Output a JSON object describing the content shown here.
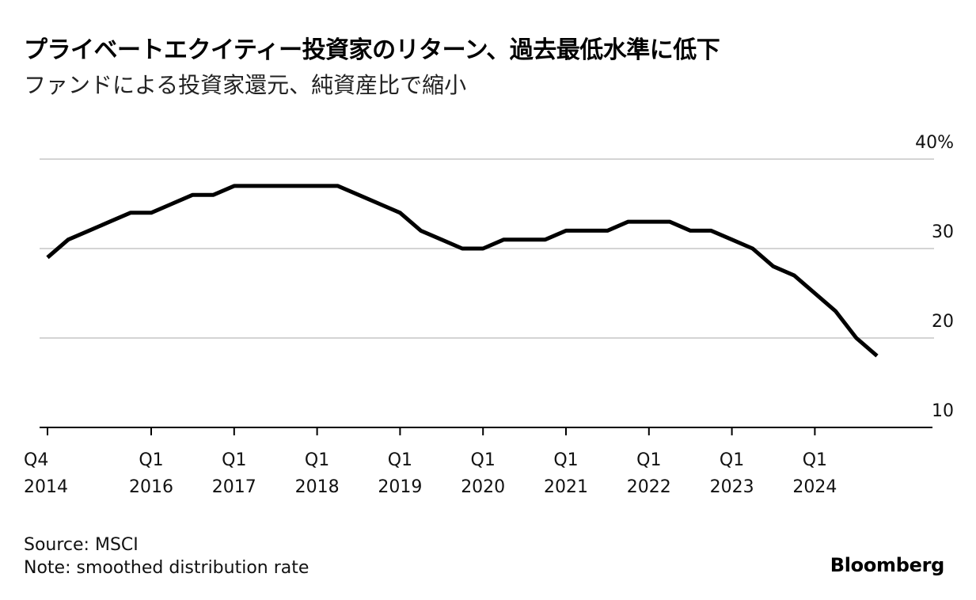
{
  "chart_data": {
    "type": "line",
    "title": "プライベートエクイティー投資家のリターン、過去最低水準に低下",
    "subtitle": "ファンドによる投資家還元、純資産比で縮小",
    "xlabel": "",
    "ylabel": "",
    "ylim": [
      10,
      40
    ],
    "yticks": [
      {
        "value": 40,
        "label": "40%"
      },
      {
        "value": 30,
        "label": "30"
      },
      {
        "value": 20,
        "label": "20"
      },
      {
        "value": 10,
        "label": "10"
      }
    ],
    "xticks": [
      {
        "index": 0,
        "line1": "Q4",
        "line2": "2014"
      },
      {
        "index": 5,
        "line1": "Q1",
        "line2": "2016"
      },
      {
        "index": 9,
        "line1": "Q1",
        "line2": "2017"
      },
      {
        "index": 13,
        "line1": "Q1",
        "line2": "2018"
      },
      {
        "index": 17,
        "line1": "Q1",
        "line2": "2019"
      },
      {
        "index": 21,
        "line1": "Q1",
        "line2": "2020"
      },
      {
        "index": 25,
        "line1": "Q1",
        "line2": "2021"
      },
      {
        "index": 29,
        "line1": "Q1",
        "line2": "2022"
      },
      {
        "index": 33,
        "line1": "Q1",
        "line2": "2023"
      },
      {
        "index": 37,
        "line1": "Q1",
        "line2": "2024"
      }
    ],
    "series": [
      {
        "name": "smoothed distribution rate",
        "color": "#000000",
        "values": [
          29,
          31,
          32,
          33,
          34,
          34,
          35,
          36,
          36,
          37,
          37,
          37,
          37,
          37,
          37,
          36,
          35,
          34,
          32,
          31,
          30,
          30,
          31,
          31,
          31,
          32,
          32,
          32,
          33,
          33,
          33,
          32,
          32,
          31,
          30,
          28,
          27,
          25,
          23,
          20,
          18
        ]
      }
    ]
  },
  "footer": {
    "source": "Source: MSCI",
    "note": "Note: smoothed distribution rate",
    "brand": "Bloomberg"
  },
  "colors": {
    "line": "#000000",
    "grid": "#d4d4d4",
    "axis": "#000000"
  }
}
